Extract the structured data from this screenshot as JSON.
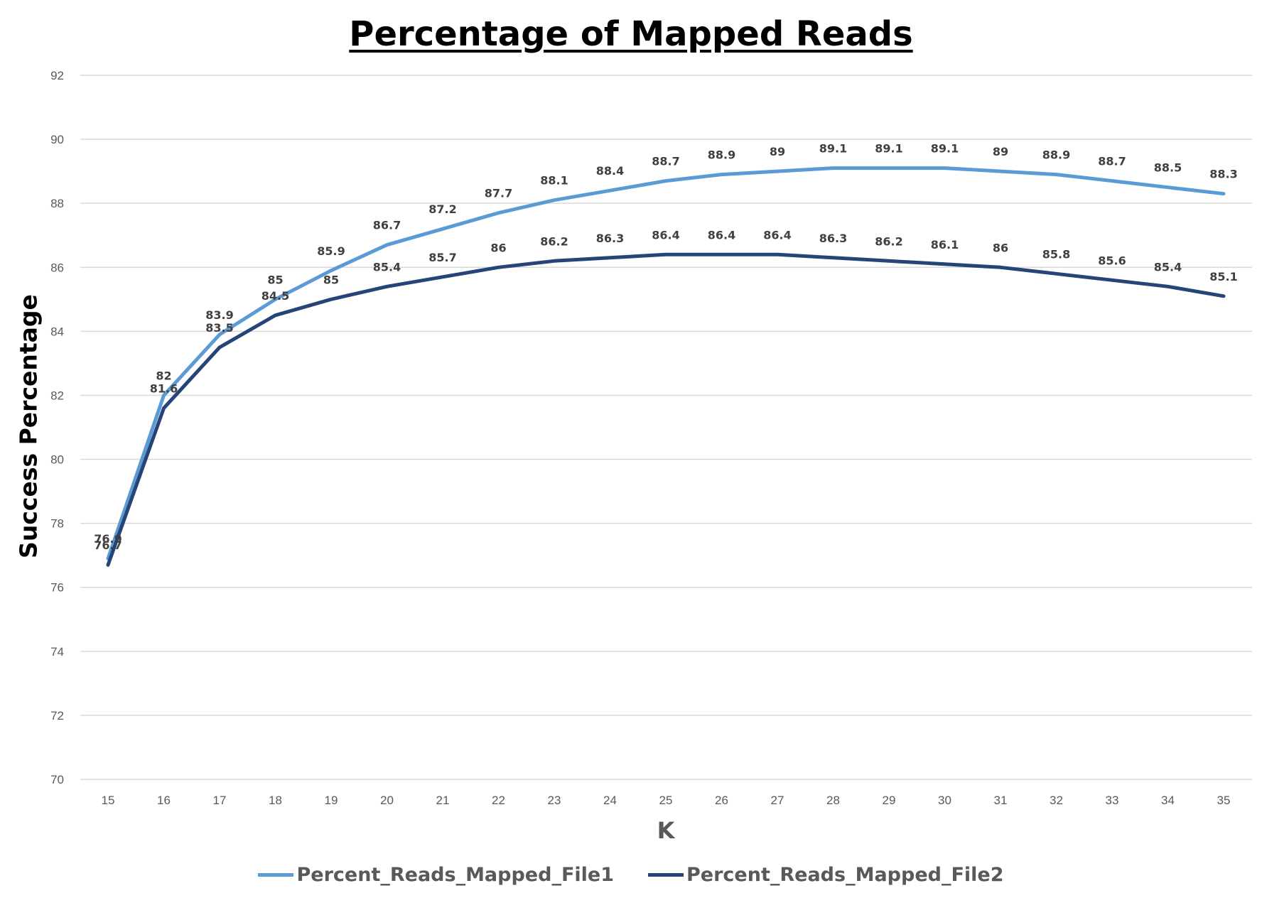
{
  "chart_data": {
    "type": "line",
    "title": "Percentage of Mapped Reads",
    "xlabel": "K",
    "ylabel": "Success Percentage",
    "x": [
      15,
      16,
      17,
      18,
      19,
      20,
      21,
      22,
      23,
      24,
      25,
      26,
      27,
      28,
      29,
      30,
      31,
      32,
      33,
      34,
      35
    ],
    "ylim": [
      70,
      92
    ],
    "yticks": [
      70,
      72,
      74,
      76,
      78,
      80,
      82,
      84,
      86,
      88,
      90,
      92
    ],
    "grid": true,
    "legend_position": "bottom",
    "series": [
      {
        "name": "Percent_Reads_Mapped_File1",
        "color": "#5b9bd5",
        "values": [
          76.9,
          82,
          83.9,
          85,
          85.9,
          86.7,
          87.2,
          87.7,
          88.1,
          88.4,
          88.7,
          88.9,
          89,
          89.1,
          89.1,
          89.1,
          89,
          88.9,
          88.7,
          88.5,
          88.3
        ]
      },
      {
        "name": "Percent_Reads_Mapped_File2",
        "color": "#264478",
        "values": [
          76.7,
          81.6,
          83.5,
          84.5,
          85,
          85.4,
          85.7,
          86,
          86.2,
          86.3,
          86.4,
          86.4,
          86.4,
          86.3,
          86.2,
          86.1,
          86,
          85.8,
          85.6,
          85.4,
          85.1
        ]
      }
    ]
  }
}
